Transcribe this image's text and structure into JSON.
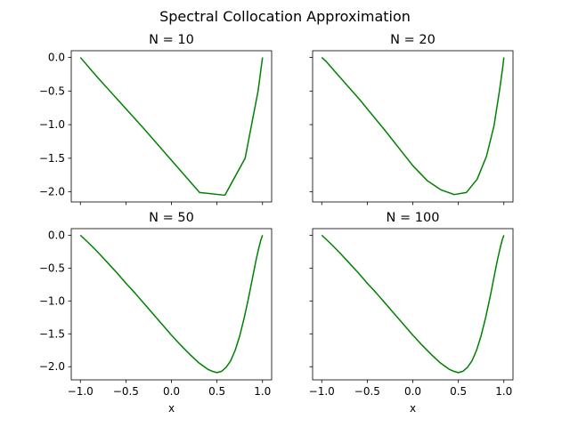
{
  "suptitle": "Spectral Collocation Approximation",
  "line_color": "#008000",
  "chart_data": [
    {
      "type": "line",
      "title": "N = 10",
      "xlabel": "",
      "ylabel": "",
      "xlim": [
        -1.1,
        1.1
      ],
      "ylim": [
        -2.15,
        0.1
      ],
      "xticks": [
        -1.0,
        -0.5,
        0.0,
        0.5,
        1.0
      ],
      "yticks": [
        0.0,
        -0.5,
        -1.0,
        -1.5,
        -2.0
      ],
      "x": [
        -1.0,
        -0.809,
        -0.309,
        0.309,
        0.587,
        0.809,
        0.951,
        1.0
      ],
      "y": [
        0.0,
        -0.3,
        -1.05,
        -2.01,
        -2.05,
        -1.5,
        -0.5,
        0.0
      ]
    },
    {
      "type": "line",
      "title": "N = 20",
      "xlabel": "",
      "ylabel": "",
      "xlim": [
        -1.1,
        1.1
      ],
      "ylim": [
        -2.15,
        0.1
      ],
      "xticks": [
        -1.0,
        -0.5,
        0.0,
        0.5,
        1.0
      ],
      "yticks": [
        0.0,
        -0.5,
        -1.0,
        -1.5,
        -2.0
      ],
      "x": [
        -1.0,
        -0.951,
        -0.809,
        -0.588,
        -0.309,
        0.0,
        0.156,
        0.309,
        0.454,
        0.588,
        0.707,
        0.809,
        0.891,
        0.951,
        0.988,
        1.0
      ],
      "y": [
        0.0,
        -0.06,
        -0.28,
        -0.62,
        -1.08,
        -1.61,
        -1.83,
        -1.97,
        -2.04,
        -2.01,
        -1.81,
        -1.47,
        -1.02,
        -0.5,
        -0.14,
        0.0
      ]
    },
    {
      "type": "line",
      "title": "N = 50",
      "xlabel": "x",
      "ylabel": "",
      "xlim": [
        -1.1,
        1.1
      ],
      "ylim": [
        -2.2,
        0.1
      ],
      "xticks": [
        -1.0,
        -0.5,
        0.0,
        0.5,
        1.0
      ],
      "yticks": [
        0.0,
        -0.5,
        -1.0,
        -1.5,
        -2.0
      ],
      "x": [
        -1.0,
        -0.9,
        -0.8,
        -0.7,
        -0.6,
        -0.5,
        -0.4,
        -0.3,
        -0.2,
        -0.1,
        0.0,
        0.1,
        0.2,
        0.3,
        0.4,
        0.45,
        0.5,
        0.55,
        0.6,
        0.65,
        0.7,
        0.75,
        0.8,
        0.85,
        0.9,
        0.93,
        0.96,
        0.98,
        1.0
      ],
      "y": [
        0.0,
        -0.13,
        -0.27,
        -0.42,
        -0.57,
        -0.73,
        -0.88,
        -1.04,
        -1.2,
        -1.36,
        -1.52,
        -1.67,
        -1.81,
        -1.94,
        -2.04,
        -2.07,
        -2.09,
        -2.07,
        -2.01,
        -1.91,
        -1.75,
        -1.53,
        -1.25,
        -0.93,
        -0.58,
        -0.37,
        -0.19,
        -0.08,
        0.0
      ]
    },
    {
      "type": "line",
      "title": "N = 100",
      "xlabel": "x",
      "ylabel": "",
      "xlim": [
        -1.1,
        1.1
      ],
      "ylim": [
        -2.2,
        0.1
      ],
      "xticks": [
        -1.0,
        -0.5,
        0.0,
        0.5,
        1.0
      ],
      "yticks": [
        0.0,
        -0.5,
        -1.0,
        -1.5,
        -2.0
      ],
      "x": [
        -1.0,
        -0.9,
        -0.8,
        -0.7,
        -0.6,
        -0.5,
        -0.4,
        -0.3,
        -0.2,
        -0.1,
        0.0,
        0.1,
        0.2,
        0.3,
        0.4,
        0.45,
        0.5,
        0.55,
        0.6,
        0.65,
        0.7,
        0.75,
        0.8,
        0.85,
        0.9,
        0.93,
        0.96,
        0.98,
        1.0
      ],
      "y": [
        0.0,
        -0.13,
        -0.27,
        -0.42,
        -0.57,
        -0.73,
        -0.88,
        -1.04,
        -1.2,
        -1.36,
        -1.52,
        -1.67,
        -1.81,
        -1.94,
        -2.04,
        -2.07,
        -2.09,
        -2.07,
        -2.01,
        -1.91,
        -1.75,
        -1.53,
        -1.25,
        -0.93,
        -0.58,
        -0.37,
        -0.19,
        -0.08,
        0.0
      ]
    }
  ]
}
